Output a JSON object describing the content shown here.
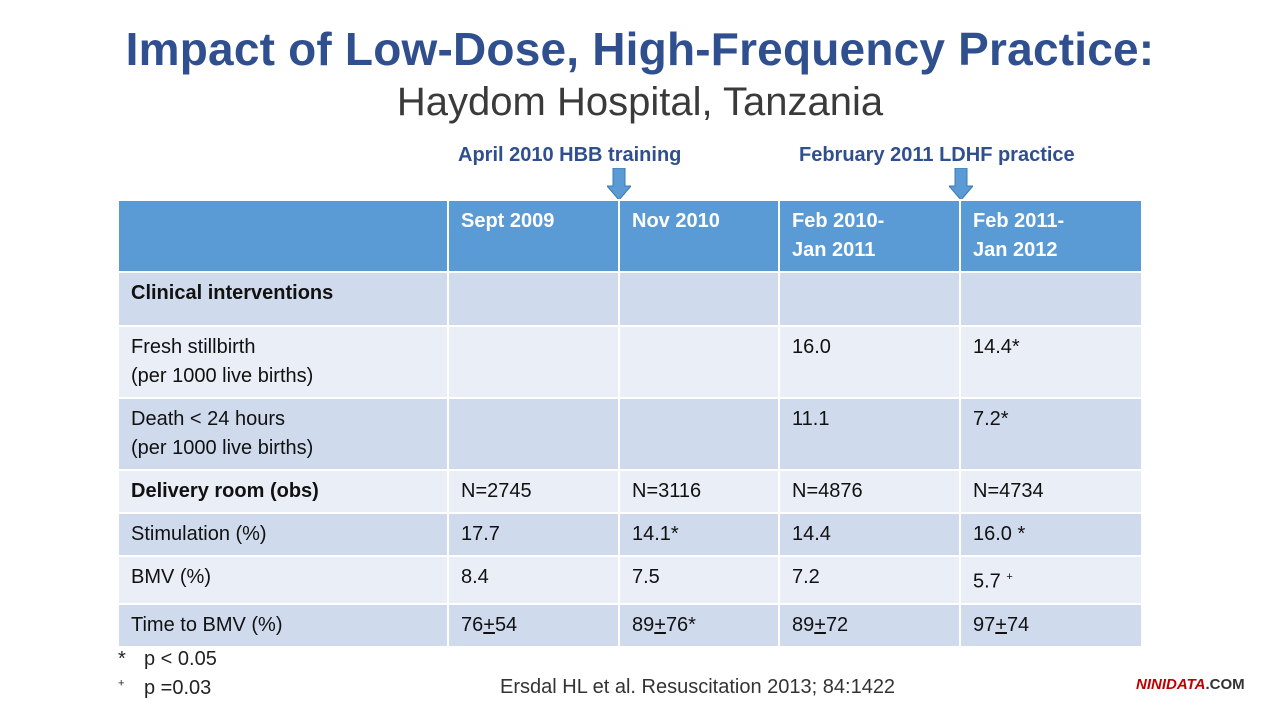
{
  "title": "Impact of Low-Dose, High-Frequency Practice:",
  "subtitle": "Haydom Hospital, Tanzania",
  "milestones": [
    {
      "label": "April 2010 HBB training"
    },
    {
      "label": "February 2011 LDHF practice"
    }
  ],
  "colors": {
    "header": "#5b9bd5",
    "row_odd": "#cfdbed",
    "row_even": "#e9eef7",
    "title": "#2f4f8f"
  },
  "table": {
    "headers": [
      {
        "line1": "",
        "line2": ""
      },
      {
        "line1": "Sept 2009",
        "line2": ""
      },
      {
        "line1": "Nov 2010",
        "line2": ""
      },
      {
        "line1": "Feb 2010-",
        "line2": "Jan 2011"
      },
      {
        "line1": "Feb 2011-",
        "line2": "Jan 2012"
      }
    ],
    "rows": [
      {
        "bold": true,
        "label1": "Clinical interventions",
        "label2": "",
        "cells": [
          "",
          "",
          "",
          ""
        ]
      },
      {
        "bold": false,
        "label1": "Fresh stillbirth",
        "label2": "(per 1000 live births)",
        "cells": [
          "",
          "",
          "16.0",
          "14.4*"
        ]
      },
      {
        "bold": false,
        "label1": "Death < 24 hours",
        "label2": "(per 1000 live births)",
        "cells": [
          "",
          "",
          "11.1",
          "7.2*"
        ]
      },
      {
        "bold": true,
        "label1": "Delivery room (obs)",
        "label2": "",
        "cells": [
          "N=2745",
          "N=3116",
          "N=4876",
          "N=4734"
        ]
      },
      {
        "bold": false,
        "label1": "Stimulation (%)",
        "label2": "",
        "cells": [
          "17.7",
          "14.1*",
          "14.4",
          "16.0 *"
        ]
      },
      {
        "bold": false,
        "label1": "BMV (%)",
        "label2": "",
        "cells": [
          "8.4",
          "7.5",
          "7.2",
          "5.7 "
        ],
        "last_sup": "+"
      },
      {
        "bold": false,
        "label1": "Time to BMV (%)",
        "label2": "",
        "pm": [
          {
            "a": "76",
            "pm": "+",
            "b": "54"
          },
          {
            "a": "89",
            "pm": "+",
            "b": "76*"
          },
          {
            "a": "89",
            "pm": "+",
            "b": "72"
          },
          {
            "a": "97",
            "pm": "+",
            "b": "74"
          }
        ]
      }
    ]
  },
  "footnotes": [
    {
      "symbol": "*",
      "text": "p < 0.05"
    },
    {
      "symbol": "+",
      "text": "p =0.03"
    }
  ],
  "citation": "Ersdal HL et al. Resuscitation 2013; 84:1422",
  "brand": {
    "part1": "NINIDATA",
    "part2": ".COM"
  }
}
